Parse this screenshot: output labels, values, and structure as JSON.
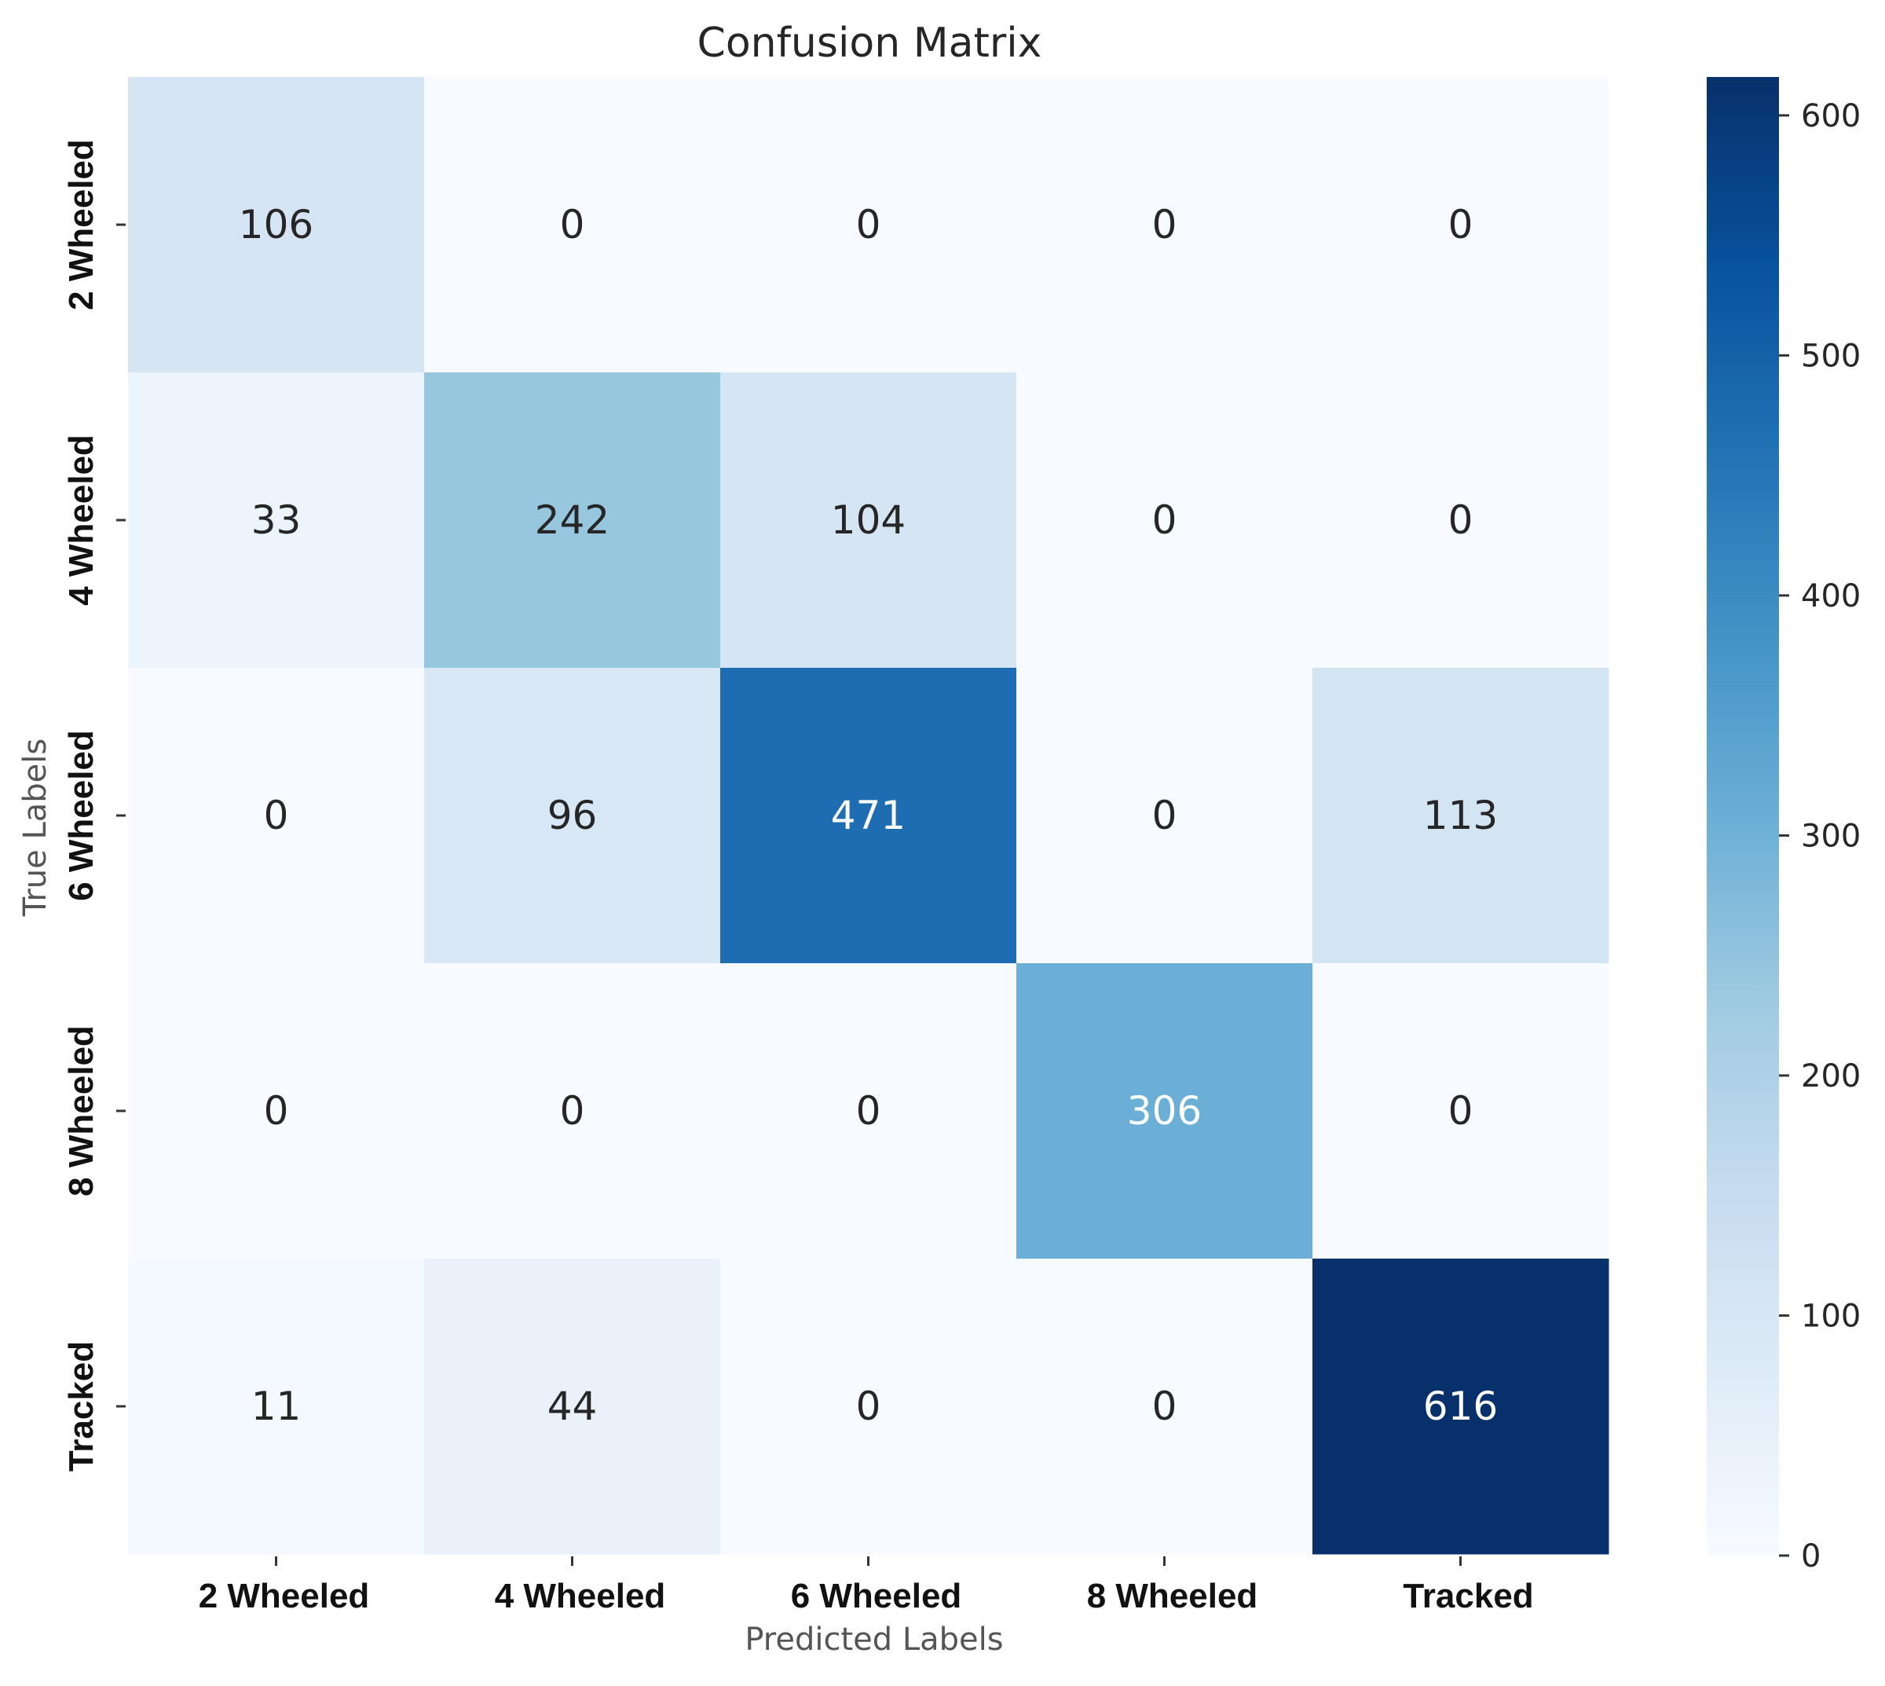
{
  "chart_data": {
    "type": "heatmap",
    "title": "Confusion Matrix",
    "xlabel": "Predicted Labels",
    "ylabel": "True Labels",
    "x_categories": [
      "2 Wheeled",
      "4 Wheeled",
      "6 Wheeled",
      "8 Wheeled",
      "Tracked"
    ],
    "y_categories": [
      "2 Wheeled",
      "4 Wheeled",
      "6 Wheeled",
      "8 Wheeled",
      "Tracked"
    ],
    "values": [
      [
        106,
        0,
        0,
        0,
        0
      ],
      [
        33,
        242,
        104,
        0,
        0
      ],
      [
        0,
        96,
        471,
        0,
        113
      ],
      [
        0,
        0,
        0,
        306,
        0
      ],
      [
        11,
        44,
        0,
        0,
        616
      ]
    ],
    "colormap": "Blues",
    "colorbar": {
      "range": [
        0,
        616
      ],
      "ticks": [
        "0",
        "100",
        "200",
        "300",
        "400",
        "500",
        "600"
      ]
    }
  }
}
